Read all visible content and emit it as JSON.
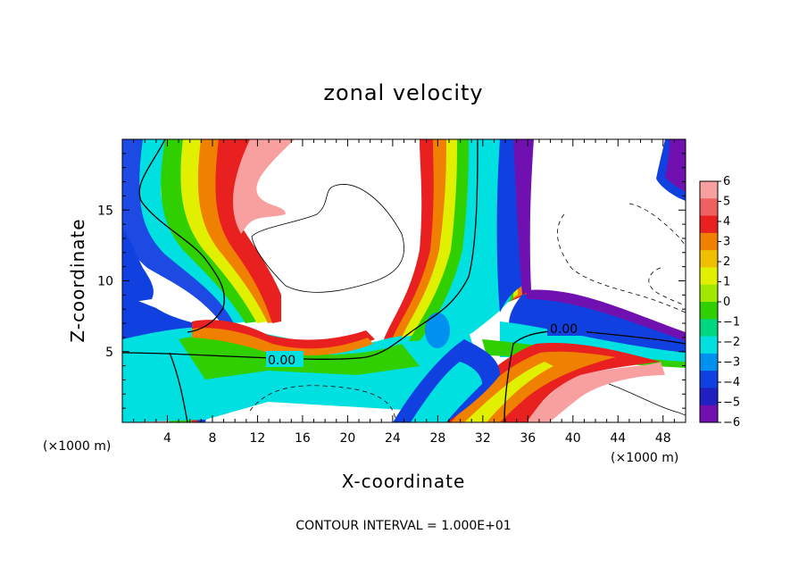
{
  "chart_data": {
    "type": "heatmap",
    "title": "zonal velocity",
    "xlabel": "X-coordinate",
    "ylabel": "Z-coordinate",
    "x_unit_label_left": "(×1000 m)",
    "x_unit_label_right": "(×1000 m)",
    "xlim": [
      0,
      50
    ],
    "ylim": [
      0,
      20
    ],
    "x_ticks": [
      4,
      8,
      12,
      16,
      20,
      24,
      28,
      32,
      36,
      40,
      44,
      48
    ],
    "y_ticks": [
      5,
      10,
      15
    ],
    "colorbar": {
      "levels": [
        6,
        5,
        4,
        3,
        2,
        1,
        0,
        -1,
        -2,
        -3,
        -4,
        -5,
        -6
      ],
      "tick_labels": [
        "6",
        "5",
        "4",
        "3",
        "2",
        "1",
        "0",
        "−1",
        "−2",
        "−3",
        "−4",
        "−5",
        "−6"
      ],
      "colors": [
        "#f8a0a0",
        "#f06060",
        "#e82020",
        "#f08000",
        "#f0c000",
        "#e0f000",
        "#a0e800",
        "#30d000",
        "#00d880",
        "#00e0e0",
        "#0090f0",
        "#1040e0",
        "#2020c0",
        "#7010b0"
      ]
    },
    "contour_labels": [
      {
        "text": "0.00",
        "x": 38.5,
        "z": 6.6
      },
      {
        "text": "0.00",
        "x": 14.5,
        "z": 4.5
      }
    ],
    "contour_interval_text": "CONTOUR INTERVAL = 1.000E+01"
  }
}
